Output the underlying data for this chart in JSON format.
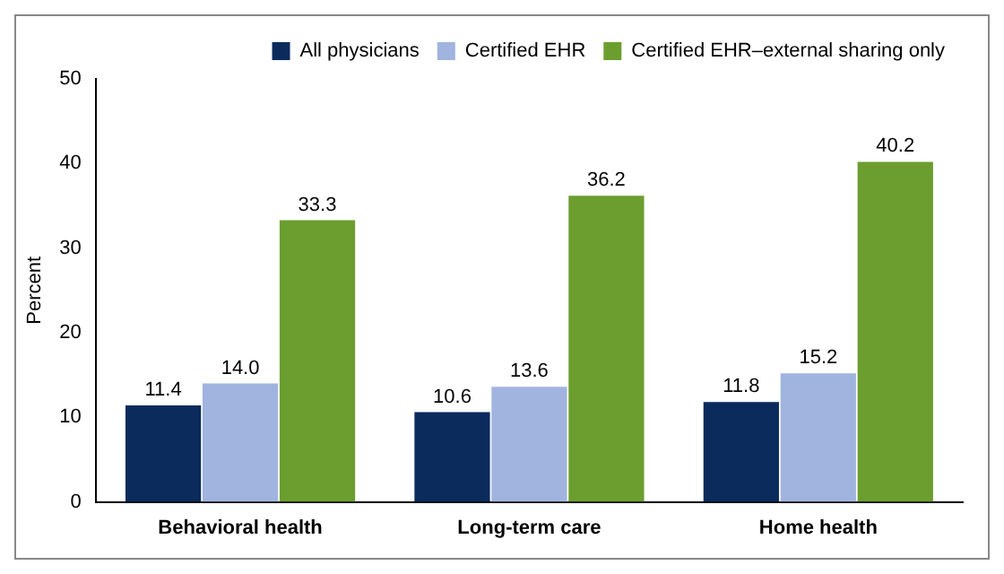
{
  "chart_data": {
    "type": "bar",
    "ylabel": "Percent",
    "categories": [
      "Behavioral health",
      "Long-term care",
      "Home health"
    ],
    "series": [
      {
        "name": "All physicians",
        "color": "#0b2b5c",
        "values": [
          11.4,
          10.6,
          11.8
        ],
        "value_labels": [
          "11.4",
          "10.6",
          "11.8"
        ]
      },
      {
        "name": "Certified EHR",
        "color": "#a0b4df",
        "values": [
          14.0,
          13.6,
          15.2
        ],
        "value_labels": [
          "14.0",
          "13.6",
          "15.2"
        ]
      },
      {
        "name": "Certified EHR–external sharing only",
        "color": "#6b9e2f",
        "values": [
          33.3,
          36.2,
          40.2
        ],
        "value_labels": [
          "33.3",
          "36.2",
          "40.2"
        ]
      }
    ],
    "ylim": [
      0,
      50
    ],
    "yticks": [
      0,
      10,
      20,
      30,
      40,
      50
    ],
    "grid": false,
    "legend": "top right"
  }
}
